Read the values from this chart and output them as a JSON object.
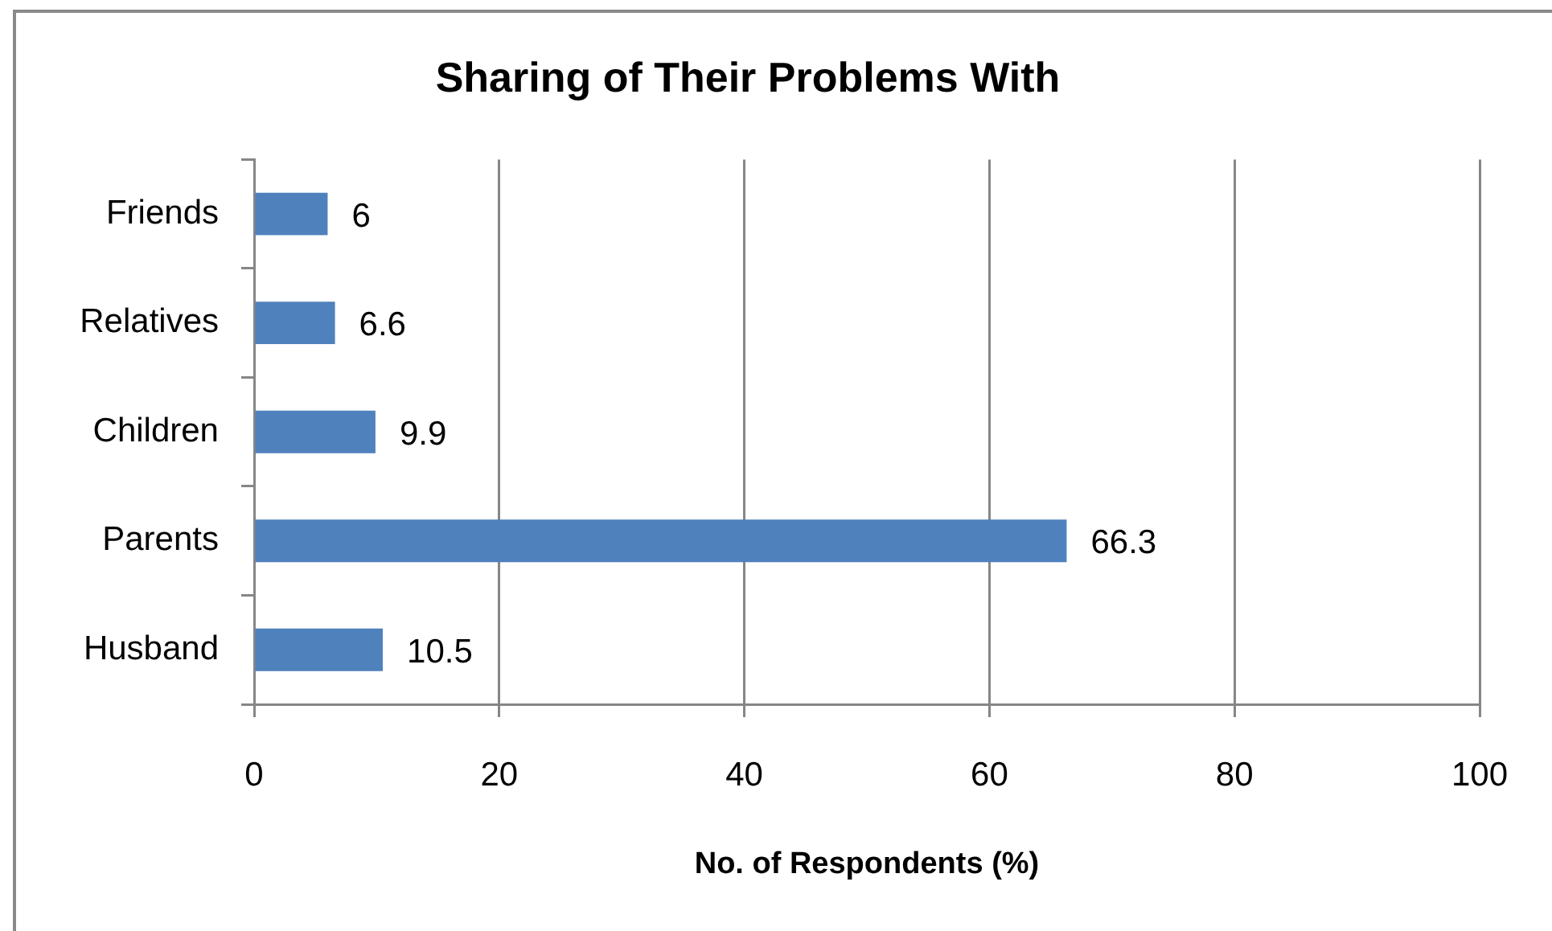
{
  "chart_data": {
    "type": "bar",
    "title": "Sharing of Their Problems With",
    "xlabel": "No. of Respondents (%)",
    "categories": [
      "Friends",
      "Relatives",
      "Children",
      "Parents",
      "Husband"
    ],
    "values": [
      6,
      6.6,
      9.9,
      66.3,
      10.5
    ],
    "color": "#4f81bd",
    "orientation": "horizontal",
    "xlim": [
      0,
      100
    ],
    "xticks": [
      0,
      20,
      40,
      60,
      80,
      100
    ],
    "grid": "x",
    "data_labels": true,
    "legend": false
  }
}
